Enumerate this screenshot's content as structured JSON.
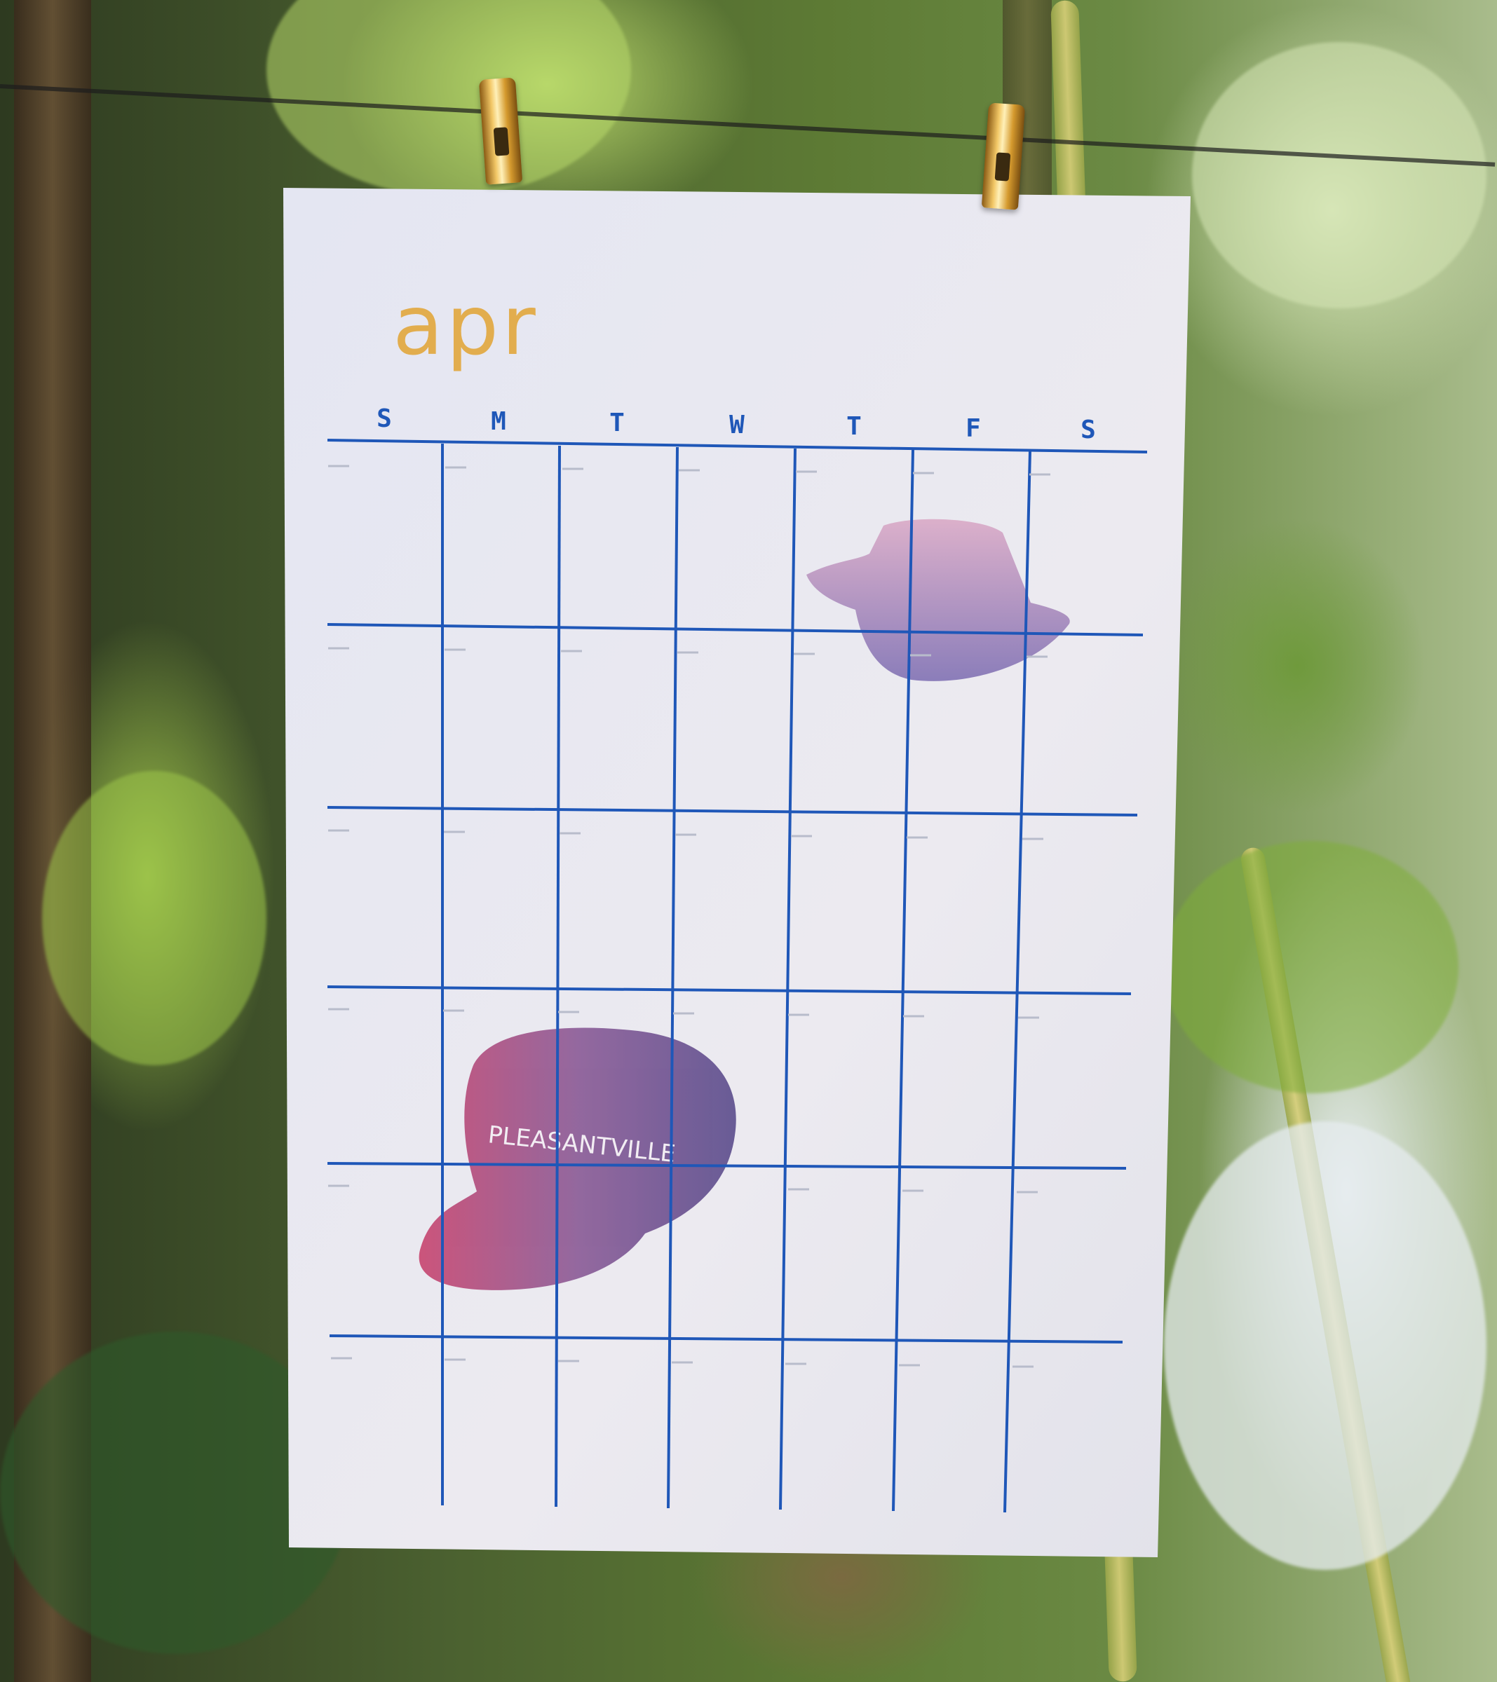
{
  "calendar": {
    "month": "apr",
    "weekdays": [
      "S",
      "M",
      "T",
      "W",
      "T",
      "F",
      "S"
    ]
  },
  "colors": {
    "grid": "#1f57b8",
    "month_text": "#e2ad4e",
    "paper": "#e9e8f0"
  },
  "illustrations": [
    "cowboy-hat-icon",
    "baseball-cap-icon"
  ]
}
